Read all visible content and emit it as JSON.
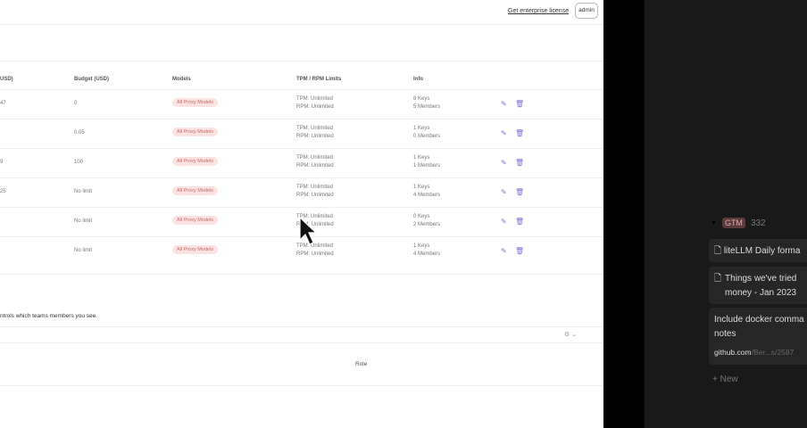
{
  "header": {
    "enterprise_link": "Get enterprise license",
    "user_button": "admin"
  },
  "table": {
    "columns": [
      "USD)",
      "Budget (USD)",
      "Models",
      "TPM / RPM Limits",
      "Info"
    ],
    "rows": [
      {
        "spend": "47",
        "budget": "0",
        "model": "All Proxy Models",
        "tpm": "TPM: Unlimited",
        "rpm": "RPM: Unlimited",
        "keys": "8 Keys",
        "members": "5 Members"
      },
      {
        "spend": "",
        "budget": "0.05",
        "model": "All Proxy Models",
        "tpm": "TPM: Unlimited",
        "rpm": "RPM: Unlimited",
        "keys": "1 Keys",
        "members": "0 Members"
      },
      {
        "spend": "9",
        "budget": "100",
        "model": "All Proxy Models",
        "tpm": "TPM: Unlimited",
        "rpm": "RPM: Unlimited",
        "keys": "1 Keys",
        "members": "1 Members"
      },
      {
        "spend": "25",
        "budget": "No limit",
        "model": "All Proxy Models",
        "tpm": "TPM: Unlimited",
        "rpm": "RPM: Unlimited",
        "keys": "1 Keys",
        "members": "4 Members"
      },
      {
        "spend": "",
        "budget": "No limit",
        "model": "All Proxy Models",
        "tpm": "TPM: Unlimited",
        "rpm": "RPM: Unlimited",
        "keys": "0 Keys",
        "members": "2 Members"
      },
      {
        "spend": "",
        "budget": "No limit",
        "model": "All Proxy Models",
        "tpm": "TPM: Unlimited",
        "rpm": "RPM: Unlimited",
        "keys": "1 Keys",
        "members": "4 Members"
      }
    ]
  },
  "members": {
    "note": "ntrols which teams members you see.",
    "role_header": "Role"
  },
  "notion": {
    "group_tag": "GTM",
    "group_count": "332",
    "cards": [
      {
        "title": "liteLLM Daily forma"
      },
      {
        "title": "Things we've tried money - Jan 2023"
      },
      {
        "title": "Include docker comma notes",
        "link_host": "github.com",
        "link_path": "/Ber...s/2587"
      }
    ],
    "new_label": "+ New"
  },
  "colors": {
    "accent": "#7b72d6",
    "badge_bg": "#fde2e2",
    "dark_bg": "#191919"
  }
}
